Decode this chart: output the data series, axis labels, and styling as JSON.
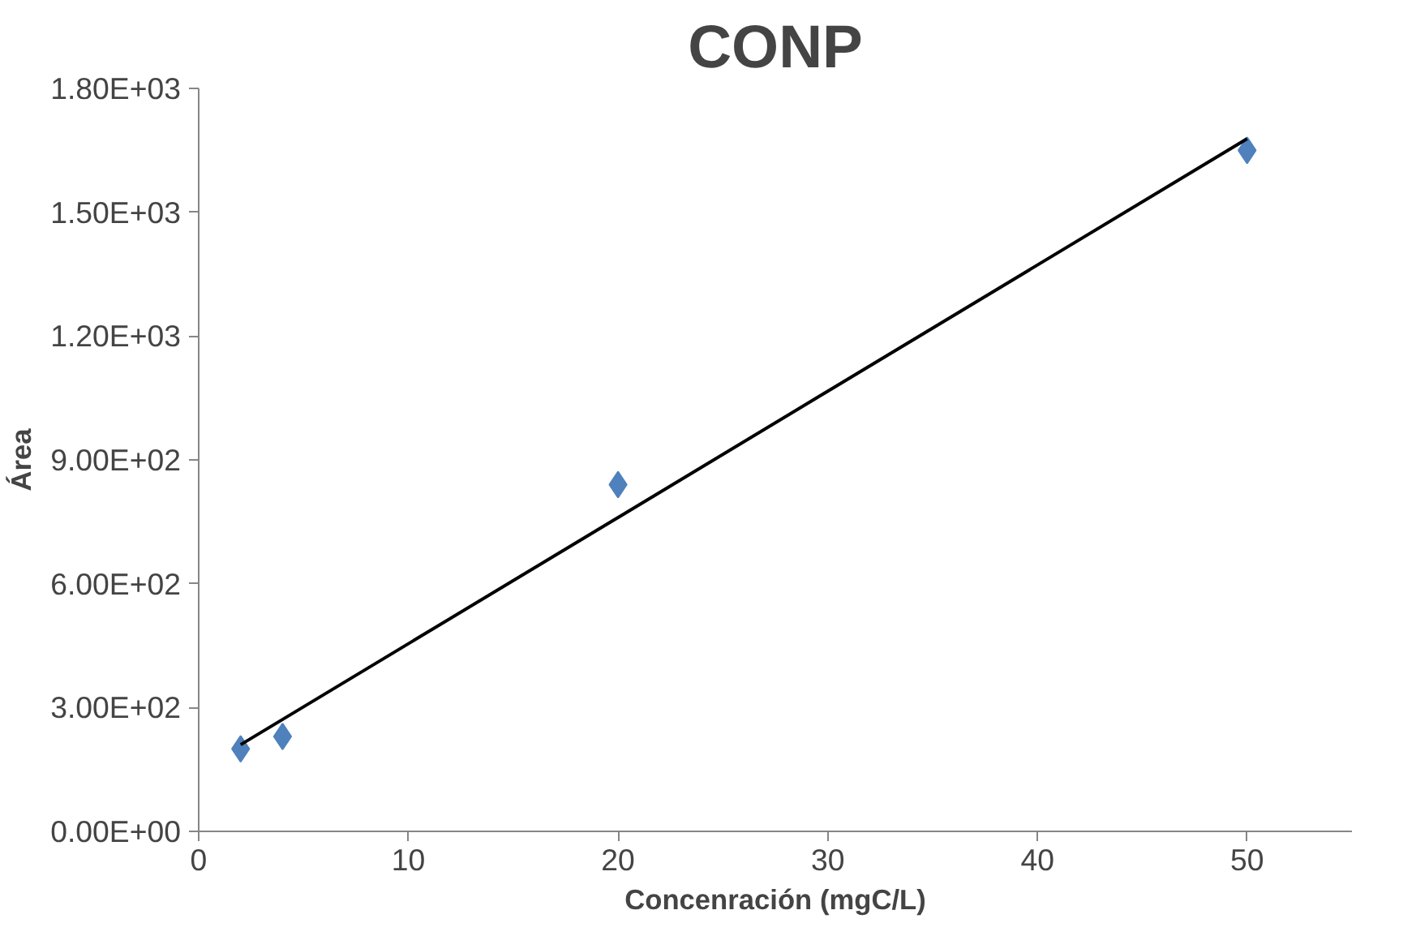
{
  "chart_data": {
    "type": "scatter",
    "title": "CONP",
    "xlabel": "Concenración (mgC/L)",
    "ylabel": "Área",
    "xlim": [
      0,
      55
    ],
    "xticks": [
      0,
      10,
      20,
      30,
      40,
      50
    ],
    "ylim": [
      0,
      1800
    ],
    "yticks": [
      {
        "value": 0,
        "label": "0.00E+00"
      },
      {
        "value": 300,
        "label": "3.00E+02"
      },
      {
        "value": 600,
        "label": "6.00E+02"
      },
      {
        "value": 900,
        "label": "9.00E+02"
      },
      {
        "value": 1200,
        "label": "1.20E+03"
      },
      {
        "value": 1500,
        "label": "1.50E+03"
      },
      {
        "value": 1800,
        "label": "1.80E+03"
      }
    ],
    "grid": false,
    "marker": "diamond",
    "series": [
      {
        "color": "#4f81bd",
        "x": [
          2,
          4,
          20,
          50
        ],
        "values": [
          200,
          230,
          840,
          1650
        ]
      },
      {
        "type": "line",
        "color": "#000000",
        "marker": "none",
        "line_style": "solid",
        "x": [
          2,
          50
        ],
        "values": [
          210,
          1678
        ]
      }
    ]
  }
}
